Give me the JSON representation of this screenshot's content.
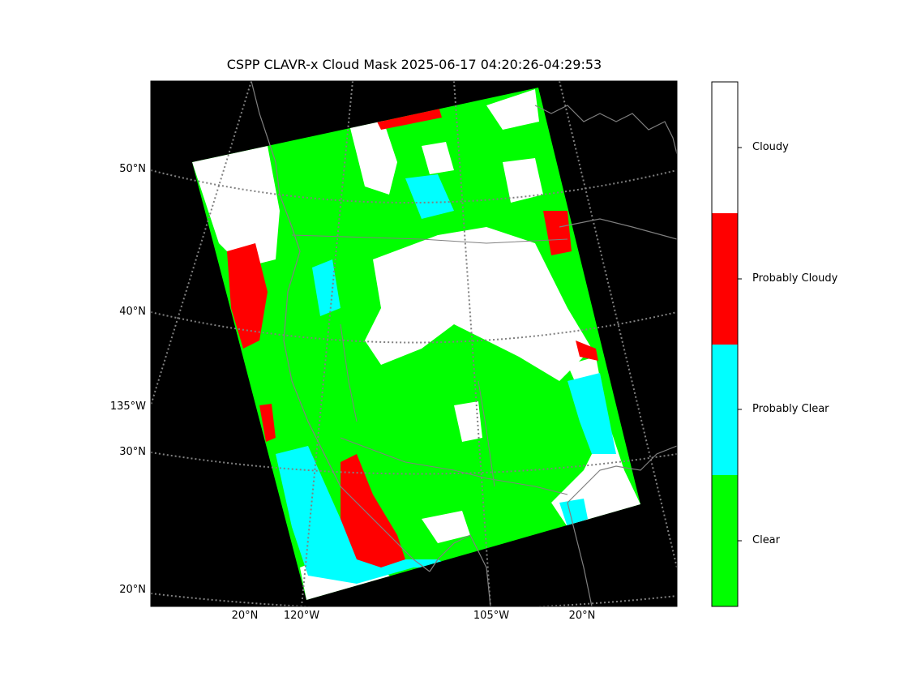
{
  "title": "CSPP CLAVR-x Cloud Mask 2025-06-17 04:20:26-04:29:53",
  "lat_labels": [
    {
      "text": "50°N"
    },
    {
      "text": "40°N"
    },
    {
      "text": "135°W"
    },
    {
      "text": "30°N"
    },
    {
      "text": "20°N"
    }
  ],
  "lon_labels": [
    {
      "text": "20°N"
    },
    {
      "text": "120°W"
    },
    {
      "text": "105°W"
    },
    {
      "text": "20°N"
    }
  ],
  "legend": [
    {
      "label": "Cloudy",
      "color": "#ffffff"
    },
    {
      "label": "Probably Cloudy",
      "color": "#ff0000"
    },
    {
      "label": "Probably Clear",
      "color": "#00ffff"
    },
    {
      "label": "Clear",
      "color": "#00ff00"
    }
  ],
  "colors": {
    "background": "#000000",
    "clear": "#00ff00",
    "probably_clear": "#00ffff",
    "probably_cloudy": "#ff0000",
    "cloudy": "#ffffff",
    "grid": "#808080",
    "coastline": "#808080"
  }
}
